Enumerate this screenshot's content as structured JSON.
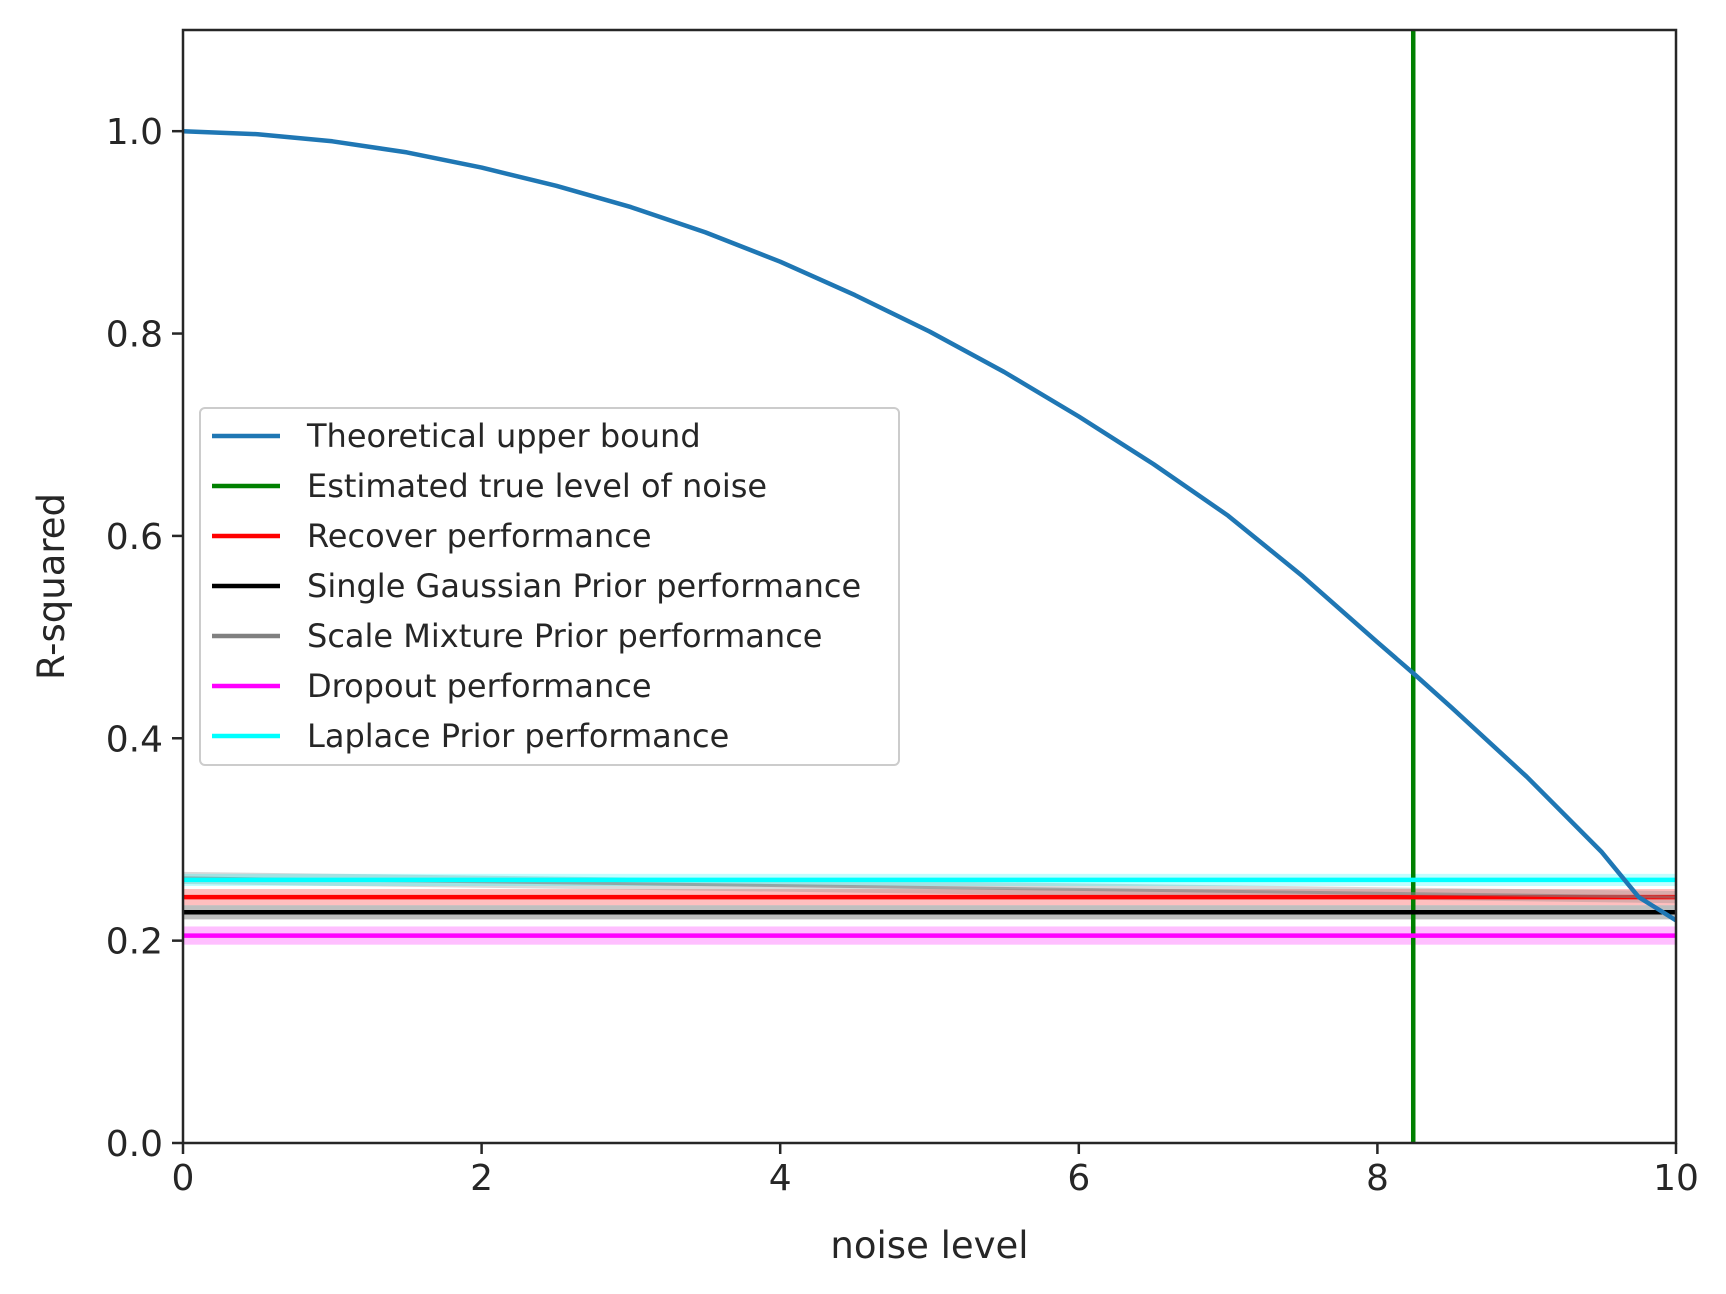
{
  "chart_data": {
    "type": "line",
    "title": "",
    "xlabel": "noise level",
    "ylabel": "R-squared",
    "xlim": [
      0,
      10
    ],
    "ylim": [
      0,
      1.1
    ],
    "grid": false,
    "legend_position": "center-left",
    "x_ticks": [
      0,
      2,
      4,
      6,
      8,
      10
    ],
    "x_tick_labels": [
      "0",
      "2",
      "4",
      "6",
      "8",
      "10"
    ],
    "y_ticks": [
      0,
      0.2,
      0.4,
      0.6,
      0.8,
      1.0
    ],
    "y_tick_labels": [
      "0.0",
      "0.2",
      "0.4",
      "0.6",
      "0.8",
      "1.0"
    ],
    "series": [
      {
        "name": "Theoretical upper bound",
        "kind": "curve",
        "color": "#1f77b4",
        "x": [
          0,
          0.5,
          1,
          1.5,
          2,
          2.5,
          3,
          3.5,
          4,
          4.5,
          5,
          5.5,
          6,
          6.5,
          7,
          7.5,
          8,
          8.25,
          8.5,
          9,
          9.5,
          9.75,
          10
        ],
        "y": [
          1.0,
          0.997,
          0.99,
          0.979,
          0.964,
          0.946,
          0.925,
          0.9,
          0.871,
          0.838,
          0.802,
          0.762,
          0.718,
          0.671,
          0.62,
          0.56,
          0.495,
          0.463,
          0.43,
          0.362,
          0.288,
          0.243,
          0.22
        ]
      },
      {
        "name": "Estimated true level of noise",
        "kind": "vline",
        "color": "#008000",
        "x": 8.24
      },
      {
        "name": "Recover performance",
        "kind": "hline",
        "color": "#ff0000",
        "y": 0.243,
        "band": [
          0.235,
          0.251
        ]
      },
      {
        "name": "Single Gaussian Prior performance",
        "kind": "hline",
        "color": "#000000",
        "y": 0.228,
        "band": [
          0.221,
          0.235
        ]
      },
      {
        "name": "Scale Mixture Prior performance",
        "kind": "sloped",
        "color": "#808080",
        "y_start": 0.262,
        "y_end": 0.243,
        "band": 0.006
      },
      {
        "name": "Dropout performance",
        "kind": "hline",
        "color": "#ff00ff",
        "y": 0.205,
        "band": [
          0.196,
          0.214
        ]
      },
      {
        "name": "Laplace Prior performance",
        "kind": "hline",
        "color": "#00ffff",
        "y": 0.26,
        "band": [
          0.254,
          0.266
        ]
      }
    ]
  }
}
